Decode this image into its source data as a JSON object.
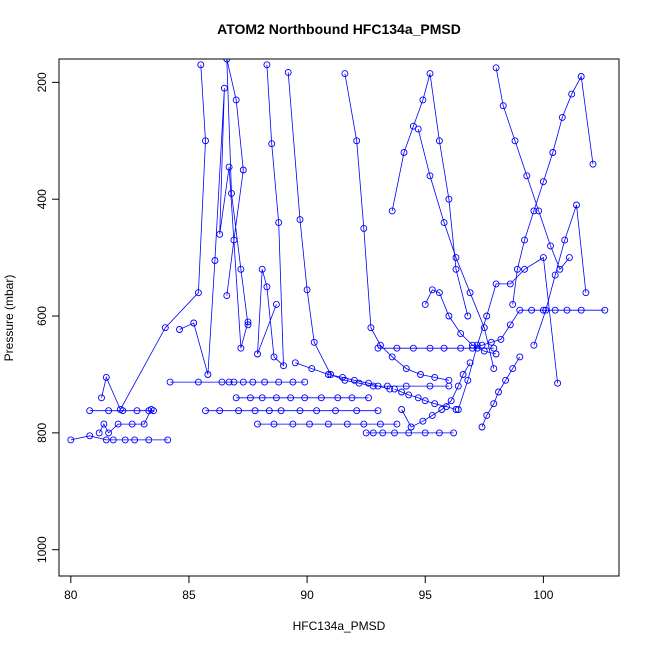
{
  "chart_data": {
    "type": "scatter",
    "title": "ATOM2 Northbound HFC134a_PMSD",
    "xlabel": "HFC134a_PMSD",
    "ylabel": "Pressure (mbar)",
    "xlim": [
      79.5,
      103.2
    ],
    "ylim": [
      1045,
      160
    ],
    "y_axis_inverted": true,
    "x_ticks": [
      80,
      85,
      90,
      95,
      100
    ],
    "y_ticks": [
      200,
      400,
      600,
      800,
      1000
    ],
    "grid": false,
    "legend": "none",
    "color": "#0000ff",
    "marker": "open-circle",
    "lines_connecting_points": true,
    "series": [
      {
        "x": [
          80.0,
          80.8,
          81.5,
          81.8,
          82.3,
          82.7,
          83.3,
          84.1
        ],
        "y": [
          812,
          805,
          812,
          812,
          812,
          812,
          812,
          812
        ]
      },
      {
        "x": [
          81.2,
          81.4,
          81.6,
          82.0,
          82.6,
          83.1,
          83.4
        ],
        "y": [
          800,
          785,
          800,
          785,
          785,
          785,
          760
        ]
      },
      {
        "x": [
          80.8,
          81.6,
          82.2,
          82.8,
          83.3,
          83.5
        ],
        "y": [
          762,
          762,
          762,
          762,
          762,
          762
        ]
      },
      {
        "x": [
          81.3,
          81.5,
          82.1,
          84.0,
          85.4,
          85.7,
          85.5
        ],
        "y": [
          740,
          705,
          760,
          620,
          560,
          300,
          170
        ]
      },
      {
        "x": [
          84.2,
          85.4,
          86.4,
          86.7,
          86.9,
          87.3,
          87.7,
          88.2,
          88.8,
          89.4,
          89.9
        ],
        "y": [
          713,
          713,
          713,
          713,
          713,
          713,
          713,
          713,
          713,
          713,
          713
        ]
      },
      {
        "x": [
          85.7,
          86.3,
          87.1,
          87.8,
          88.4,
          88.9,
          89.7,
          90.4,
          91.2,
          92.1,
          93.0
        ],
        "y": [
          762,
          762,
          762,
          762,
          762,
          762,
          762,
          762,
          762,
          762,
          762
        ]
      },
      {
        "x": [
          87.0,
          87.6,
          88.1,
          88.7,
          89.3,
          89.9,
          90.6,
          91.3,
          91.9,
          92.6
        ],
        "y": [
          740,
          740,
          740,
          740,
          740,
          740,
          740,
          740,
          740,
          740
        ]
      },
      {
        "x": [
          87.9,
          88.6,
          89.4,
          90.1,
          90.9,
          91.7,
          92.4,
          93.1,
          93.8
        ],
        "y": [
          785,
          785,
          785,
          785,
          785,
          785,
          785,
          785,
          785
        ]
      },
      {
        "x": [
          86.6,
          86.9,
          87.3,
          87.0,
          86.6,
          86.8,
          87.2,
          87.5
        ],
        "y": [
          565,
          470,
          350,
          230,
          160,
          390,
          520,
          615
        ]
      },
      {
        "x": [
          84.6,
          85.2,
          85.8,
          86.1,
          86.5,
          86.3,
          86.7,
          87.2,
          87.5
        ],
        "y": [
          623,
          612,
          700,
          505,
          210,
          460,
          345,
          655,
          610
        ]
      },
      {
        "x": [
          88.3,
          88.5,
          88.8,
          89.0,
          88.6,
          88.3,
          88.1,
          87.9,
          88.7
        ],
        "y": [
          170,
          305,
          440,
          685,
          670,
          550,
          520,
          665,
          580
        ]
      },
      {
        "x": [
          89.2,
          89.7,
          90.0,
          90.3,
          91.0,
          91.6,
          92.2,
          92.8,
          93.4,
          94.2,
          95.2,
          96.0
        ],
        "y": [
          183,
          435,
          555,
          645,
          700,
          710,
          715,
          720,
          720,
          720,
          720,
          720
        ]
      },
      {
        "x": [
          91.6,
          92.1,
          92.4,
          92.7,
          93.1,
          93.6,
          94.2,
          94.8,
          95.4,
          96.0
        ],
        "y": [
          185,
          300,
          450,
          620,
          650,
          670,
          690,
          700,
          705,
          710
        ]
      },
      {
        "x": [
          92.5,
          92.8,
          93.2,
          93.7,
          94.3,
          95.0,
          95.6,
          96.2
        ],
        "y": [
          800,
          800,
          800,
          800,
          800,
          800,
          800,
          800
        ]
      },
      {
        "x": [
          93.0,
          93.8,
          94.5,
          95.2,
          95.8,
          96.5,
          97.2,
          97.9
        ],
        "y": [
          655,
          655,
          655,
          655,
          655,
          655,
          655,
          655
        ]
      },
      {
        "x": [
          93.6,
          94.1,
          94.5,
          94.9,
          95.2,
          95.6,
          96.0,
          96.3,
          96.8
        ],
        "y": [
          420,
          320,
          275,
          230,
          185,
          300,
          400,
          520,
          600
        ]
      },
      {
        "x": [
          94.0,
          94.4,
          94.9,
          95.3,
          95.7,
          96.1,
          96.4,
          96.6,
          96.9
        ],
        "y": [
          760,
          790,
          780,
          770,
          760,
          745,
          720,
          700,
          680
        ]
      },
      {
        "x": [
          95.0,
          95.3,
          95.6,
          96.0,
          96.5,
          97.0,
          97.5,
          98.0
        ],
        "y": [
          580,
          555,
          560,
          600,
          630,
          650,
          660,
          665
        ]
      },
      {
        "x": [
          97.0,
          97.4,
          97.8,
          98.2,
          98.6,
          99.0,
          99.5,
          100.0,
          100.5,
          101.0,
          101.6,
          102.6
        ],
        "y": [
          655,
          650,
          645,
          640,
          615,
          590,
          590,
          590,
          590,
          590,
          590,
          590
        ]
      },
      {
        "x": [
          97.4,
          97.6,
          97.9,
          98.1,
          98.4,
          98.7,
          99.0
        ],
        "y": [
          790,
          770,
          750,
          730,
          710,
          690,
          670
        ]
      },
      {
        "x": [
          98.7,
          98.9,
          99.2,
          99.6,
          100.0,
          100.4,
          100.8,
          101.2,
          101.6,
          102.1
        ],
        "y": [
          580,
          520,
          470,
          420,
          370,
          320,
          260,
          220,
          190,
          340
        ]
      },
      {
        "x": [
          96.4,
          96.8,
          97.2,
          97.6,
          98.0,
          98.6,
          99.2,
          100.0,
          100.6
        ],
        "y": [
          760,
          710,
          650,
          600,
          545,
          545,
          520,
          500,
          715
        ]
      },
      {
        "x": [
          99.6,
          100.1,
          100.5,
          100.9,
          101.4,
          101.8
        ],
        "y": [
          650,
          590,
          530,
          470,
          410,
          560
        ]
      },
      {
        "x": [
          98.0,
          98.3,
          98.8,
          99.3,
          99.8,
          100.3,
          100.7,
          101.1
        ],
        "y": [
          175,
          240,
          300,
          360,
          420,
          480,
          520,
          500
        ]
      },
      {
        "x": [
          94.7,
          95.2,
          95.8,
          96.3,
          96.9,
          97.5,
          97.9
        ],
        "y": [
          280,
          360,
          440,
          500,
          560,
          620,
          690
        ]
      },
      {
        "x": [
          89.5,
          90.2,
          90.9,
          91.5,
          92.0,
          92.6,
          93.0,
          93.5
        ],
        "y": [
          680,
          690,
          700,
          705,
          710,
          715,
          720,
          725
        ]
      },
      {
        "x": [
          93.7,
          94.0,
          94.3,
          94.7,
          95.0,
          95.4,
          95.9,
          96.3
        ],
        "y": [
          725,
          730,
          735,
          740,
          745,
          750,
          755,
          760
        ]
      }
    ]
  }
}
